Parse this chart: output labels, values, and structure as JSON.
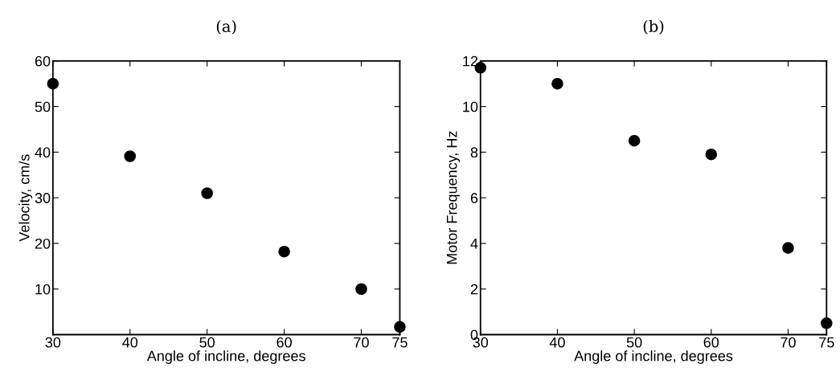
{
  "chart_data": [
    {
      "type": "scatter",
      "title": "(a)",
      "xlabel": "Angle of incline, degrees",
      "ylabel": "Velocity, cm/s",
      "x": [
        30,
        40,
        50,
        60,
        70,
        75
      ],
      "series": [
        {
          "color": "#000000",
          "values": [
            55.0,
            39.1,
            31.0,
            18.2,
            10.0,
            1.7
          ]
        }
      ],
      "xlim": [
        30,
        75
      ],
      "xticks": [
        30,
        40,
        50,
        60,
        70,
        75
      ],
      "ylim": [
        0,
        60
      ],
      "yticks": [
        10,
        20,
        30,
        40,
        50,
        60
      ],
      "marker": "circle",
      "grid": false
    },
    {
      "type": "scatter",
      "title": "(b)",
      "xlabel": "Angle of incline, degrees",
      "ylabel": "Motor Frequency, Hz",
      "x": [
        30,
        40,
        50,
        60,
        70,
        75
      ],
      "series": [
        {
          "color": "#000000",
          "values": [
            11.7,
            11.0,
            8.5,
            7.9,
            3.8,
            0.5
          ]
        }
      ],
      "xlim": [
        30,
        75
      ],
      "xticks": [
        30,
        40,
        50,
        60,
        70,
        75
      ],
      "ylim": [
        0,
        12
      ],
      "yticks": [
        0,
        2,
        4,
        6,
        8,
        10,
        12
      ],
      "marker": "circle",
      "grid": false
    }
  ]
}
